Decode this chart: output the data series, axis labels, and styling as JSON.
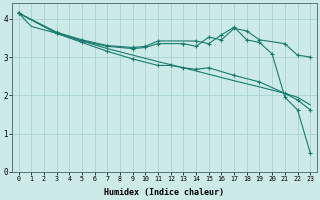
{
  "background_color": "#cceae7",
  "grid_color": "#aad4cf",
  "line_color": "#1a7a6e",
  "xlabel": "Humidex (Indice chaleur)",
  "xlim": [
    -0.5,
    23.5
  ],
  "ylim": [
    0,
    4.4
  ],
  "xticks": [
    0,
    1,
    2,
    3,
    4,
    5,
    6,
    7,
    8,
    9,
    10,
    11,
    12,
    13,
    14,
    15,
    16,
    17,
    18,
    19,
    20,
    21,
    22,
    23
  ],
  "yticks": [
    0,
    1,
    2,
    3,
    4
  ],
  "lines": [
    {
      "x": [
        0,
        1,
        3,
        5,
        7,
        9,
        11,
        13,
        15,
        17,
        19,
        21,
        22,
        23
      ],
      "y": [
        4.15,
        3.8,
        3.62,
        3.42,
        3.22,
        3.05,
        2.88,
        2.72,
        2.55,
        2.38,
        2.22,
        2.05,
        1.95,
        1.75
      ],
      "has_markers": false
    },
    {
      "x": [
        0,
        3,
        5,
        7,
        9,
        11,
        12,
        13,
        14,
        15,
        17,
        19,
        21,
        22,
        23
      ],
      "y": [
        4.15,
        3.62,
        3.38,
        3.15,
        2.95,
        2.78,
        2.78,
        2.72,
        2.68,
        2.72,
        2.52,
        2.35,
        2.05,
        1.88,
        1.62
      ],
      "has_markers": true
    },
    {
      "x": [
        0,
        3,
        5,
        7,
        9,
        10,
        11,
        13,
        14,
        15,
        16,
        17,
        18,
        19,
        21,
        22,
        23
      ],
      "y": [
        4.15,
        3.62,
        3.42,
        3.28,
        3.22,
        3.25,
        3.35,
        3.35,
        3.28,
        3.52,
        3.45,
        3.75,
        3.68,
        3.45,
        3.35,
        3.05,
        3.0
      ],
      "has_markers": true
    },
    {
      "x": [
        0,
        3,
        5,
        7,
        9,
        10,
        11,
        14,
        15,
        16,
        17,
        18,
        19,
        20,
        21,
        22,
        23
      ],
      "y": [
        4.15,
        3.65,
        3.45,
        3.3,
        3.25,
        3.28,
        3.42,
        3.42,
        3.35,
        3.58,
        3.78,
        3.45,
        3.38,
        3.08,
        1.95,
        1.62,
        0.5
      ],
      "has_markers": true
    }
  ]
}
